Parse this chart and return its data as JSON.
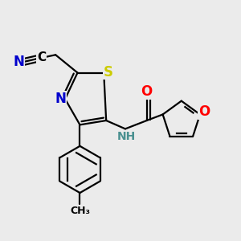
{
  "bg_color": "#ebebeb",
  "bond_color": "#000000",
  "bond_width": 1.6,
  "dbo": 0.013,
  "atom_colors": {
    "N": "#0000cc",
    "S": "#cccc00",
    "O": "#ff0000",
    "C": "#000000",
    "NH": "#4a9090"
  },
  "fs": 12,
  "fs_small": 10,
  "fs_ch3": 9
}
